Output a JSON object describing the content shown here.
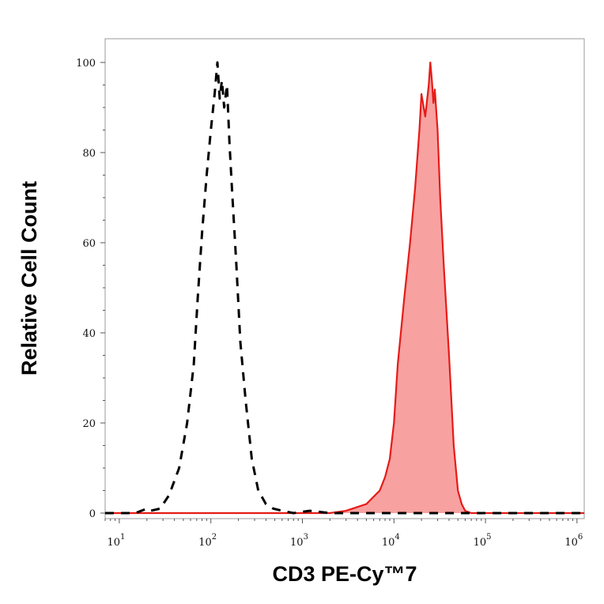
{
  "chart_data": {
    "type": "area",
    "xlabel": "CD3 PE-Cy™7",
    "ylabel": "Relative Cell Count",
    "xscale": "log",
    "xlim": [
      7,
      1200000
    ],
    "ylim": [
      0,
      100
    ],
    "grid": false,
    "legend": "none",
    "x_ticks": [
      {
        "base": "10",
        "exp": "1",
        "value": 10
      },
      {
        "base": "10",
        "exp": "2",
        "value": 100
      },
      {
        "base": "10",
        "exp": "3",
        "value": 1000
      },
      {
        "base": "10",
        "exp": "4",
        "value": 10000
      },
      {
        "base": "10",
        "exp": "5",
        "value": 100000
      },
      {
        "base": "10",
        "exp": "6",
        "value": 1000000
      }
    ],
    "y_ticks": [
      "0",
      "20",
      "40",
      "60",
      "80",
      "100"
    ],
    "series": [
      {
        "style": "dashed",
        "color": "#000000",
        "fill": "none",
        "x": [
          7,
          15,
          20,
          22,
          28,
          35,
          45,
          55,
          65,
          72,
          80,
          90,
          100,
          110,
          118,
          125,
          132,
          140,
          150,
          160,
          170,
          190,
          210,
          240,
          280,
          330,
          400,
          480,
          600,
          800,
          1200,
          2000,
          3000,
          5000,
          8000,
          20000,
          60000,
          200000,
          1200000
        ],
        "y": [
          0,
          0,
          1,
          0.5,
          1,
          4,
          10,
          20,
          33,
          48,
          62,
          75,
          85,
          93,
          100,
          92,
          96,
          90,
          95,
          82,
          72,
          55,
          38,
          25,
          12,
          5,
          2,
          1,
          0.5,
          0,
          0.5,
          0,
          0,
          0,
          0,
          0,
          0,
          0,
          0
        ]
      },
      {
        "style": "solid",
        "color": "#e61b17",
        "fill": "#f8a1a1",
        "x": [
          7,
          1000,
          2000,
          3000,
          5000,
          7000,
          8000,
          9000,
          10000,
          11000,
          13000,
          15000,
          17000,
          19000,
          20000,
          22000,
          24000,
          25000,
          26000,
          27000,
          28000,
          30000,
          32000,
          35000,
          40000,
          45000,
          50000,
          55000,
          60000,
          70000,
          100000,
          300000,
          1200000
        ],
        "y": [
          0,
          0,
          0,
          0.5,
          2,
          5,
          8,
          12,
          20,
          33,
          48,
          60,
          72,
          85,
          93,
          88,
          95,
          100,
          96,
          91,
          94,
          85,
          70,
          55,
          35,
          15,
          5,
          2,
          0.5,
          0,
          0,
          0,
          0
        ]
      }
    ]
  }
}
